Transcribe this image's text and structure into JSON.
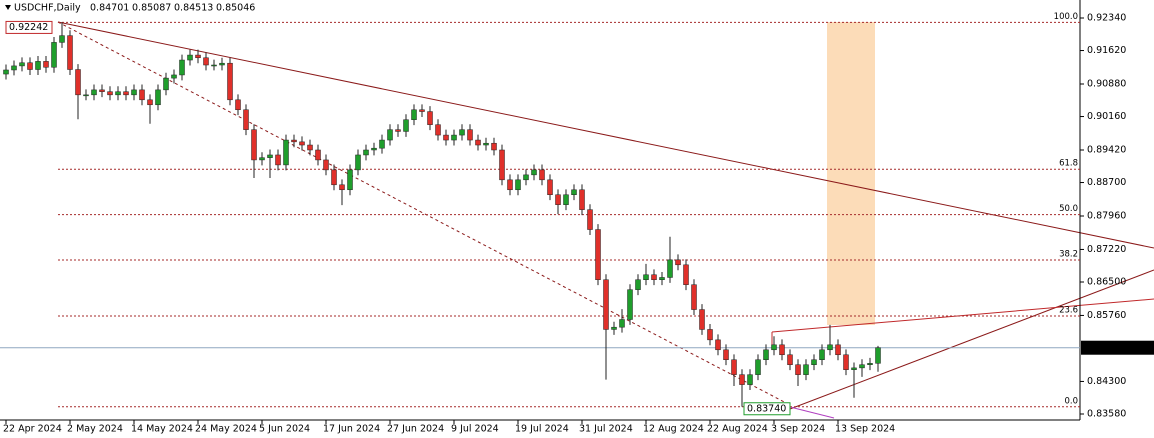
{
  "chart_data": {
    "type": "candlestick",
    "symbol": "USDCHF,Daily",
    "up_color": "#1f9e2c",
    "down_color": "#e0302a",
    "wick_color": "#222222",
    "ylim": [
      0.83447,
      0.92738
    ],
    "yticks": [
      {
        "value": 0.9234,
        "label": "0.92340"
      },
      {
        "value": 0.9162,
        "label": "0.91620"
      },
      {
        "value": 0.9088,
        "label": "0.90880"
      },
      {
        "value": 0.9016,
        "label": "0.90160"
      },
      {
        "value": 0.8942,
        "label": "0.89420"
      },
      {
        "value": 0.887,
        "label": "0.88700"
      },
      {
        "value": 0.8796,
        "label": "0.87960"
      },
      {
        "value": 0.8722,
        "label": "0.87220"
      },
      {
        "value": 0.865,
        "label": "0.86500"
      },
      {
        "value": 0.8576,
        "label": "0.85760"
      },
      {
        "value": 0.843,
        "label": "0.84300"
      },
      {
        "value": 0.8358,
        "label": "0.83580"
      }
    ],
    "extremes": [
      0.92242,
      {
        "value": 0.8374,
        "label": "0.83740"
      }
    ],
    "fib_levels": [
      {
        "value": 100,
        "label": "100.0"
      },
      61.8,
      {
        "value": 50,
        "label": "50.0"
      },
      38.2,
      23.6,
      {
        "value": 0,
        "label": "0.0"
      }
    ],
    "categories": [
      "22 Apr 2024",
      null,
      null,
      null,
      null,
      null,
      null,
      null,
      "2 May 2024",
      null,
      null,
      null,
      null,
      null,
      null,
      null,
      "14 May 2024",
      null,
      null,
      null,
      null,
      null,
      null,
      null,
      "24 May 2024",
      null,
      null,
      null,
      null,
      null,
      null,
      null,
      "5 Jun 2024",
      null,
      null,
      null,
      null,
      null,
      null,
      null,
      "17 Jun 2024",
      null,
      null,
      null,
      null,
      null,
      null,
      null,
      "27 Jun 2024",
      null,
      null,
      null,
      null,
      null,
      null,
      null,
      "9 Jul 2024",
      null,
      null,
      null,
      null,
      null,
      null,
      null,
      "19 Jul 2024",
      null,
      null,
      null,
      null,
      null,
      null,
      null,
      "31 Jul 2024",
      null,
      null,
      null,
      null,
      null,
      null,
      null,
      "12 Aug 2024",
      null,
      null,
      null,
      null,
      null,
      null,
      null,
      "22 Aug 2024",
      null,
      null,
      null,
      null,
      null,
      null,
      null,
      "3 Sep 2024",
      null,
      null,
      null,
      null,
      null,
      null,
      null,
      "13 Sep 2024",
      null,
      null,
      null,
      null,
      null
    ],
    "candles": [
      [
        0.911,
        0.9131,
        0.9098,
        0.9119
      ],
      [
        0.9119,
        0.914,
        0.9107,
        0.9128
      ],
      [
        0.9128,
        0.9147,
        0.9116,
        0.9135
      ],
      [
        0.9135,
        0.9147,
        0.9108,
        0.912
      ],
      [
        0.912,
        0.915,
        0.9108,
        0.9138
      ],
      [
        0.9138,
        0.915,
        0.9113,
        0.9125
      ],
      [
        0.9125,
        0.9192,
        0.9113,
        0.918
      ],
      [
        0.918,
        0.92242,
        0.9168,
        0.9195
      ],
      [
        0.9195,
        0.9207,
        0.9108,
        0.912
      ],
      [
        0.912,
        0.9132,
        0.901,
        0.9064
      ],
      [
        0.9064,
        0.9076,
        0.9052,
        0.9064
      ],
      [
        0.9064,
        0.9087,
        0.9052,
        0.9075
      ],
      [
        0.9075,
        0.9087,
        0.9059,
        0.9071
      ],
      [
        0.9071,
        0.9083,
        0.9052,
        0.9064
      ],
      [
        0.9064,
        0.9083,
        0.9052,
        0.9071
      ],
      [
        0.9071,
        0.9083,
        0.9052,
        0.9064
      ],
      [
        0.9064,
        0.9087,
        0.9052,
        0.9075
      ],
      [
        0.9075,
        0.9087,
        0.9041,
        0.9053
      ],
      [
        0.9053,
        0.9065,
        0.9,
        0.9042
      ],
      [
        0.9042,
        0.9087,
        0.903,
        0.9075
      ],
      [
        0.9075,
        0.9113,
        0.9063,
        0.9101
      ],
      [
        0.9101,
        0.912,
        0.9089,
        0.9108
      ],
      [
        0.9108,
        0.9153,
        0.9096,
        0.9141
      ],
      [
        0.9141,
        0.9164,
        0.9129,
        0.9152
      ],
      [
        0.9152,
        0.9164,
        0.9134,
        0.9146
      ],
      [
        0.9146,
        0.9158,
        0.9118,
        0.913
      ],
      [
        0.913,
        0.9142,
        0.9118,
        0.913
      ],
      [
        0.913,
        0.9146,
        0.9118,
        0.9134
      ],
      [
        0.9134,
        0.9146,
        0.9041,
        0.9053
      ],
      [
        0.9053,
        0.9065,
        0.9019,
        0.9031
      ],
      [
        0.9031,
        0.9043,
        0.8975,
        0.8987
      ],
      [
        0.8987,
        0.8999,
        0.888,
        0.892
      ],
      [
        0.892,
        0.8937,
        0.8908,
        0.8925
      ],
      [
        0.8925,
        0.8943,
        0.888,
        0.8931
      ],
      [
        0.8931,
        0.8943,
        0.8897,
        0.8909
      ],
      [
        0.8909,
        0.8976,
        0.8897,
        0.8964
      ],
      [
        0.8964,
        0.8976,
        0.8948,
        0.896
      ],
      [
        0.896,
        0.8972,
        0.8941,
        0.8953
      ],
      [
        0.8953,
        0.8965,
        0.893,
        0.8942
      ],
      [
        0.8942,
        0.8954,
        0.8908,
        0.892
      ],
      [
        0.892,
        0.8932,
        0.8886,
        0.8898
      ],
      [
        0.8898,
        0.891,
        0.8853,
        0.8865
      ],
      [
        0.8865,
        0.8877,
        0.882,
        0.8854
      ],
      [
        0.8854,
        0.891,
        0.8842,
        0.8898
      ],
      [
        0.8898,
        0.8943,
        0.8886,
        0.8931
      ],
      [
        0.8931,
        0.8954,
        0.8919,
        0.8942
      ],
      [
        0.8942,
        0.8958,
        0.893,
        0.8946
      ],
      [
        0.8946,
        0.8976,
        0.8934,
        0.8964
      ],
      [
        0.8964,
        0.8999,
        0.8952,
        0.8987
      ],
      [
        0.8987,
        0.8999,
        0.8971,
        0.8983
      ],
      [
        0.8983,
        0.9021,
        0.8971,
        0.9009
      ],
      [
        0.9009,
        0.9043,
        0.8997,
        0.9031
      ],
      [
        0.9031,
        0.9043,
        0.9015,
        0.9027
      ],
      [
        0.9027,
        0.9039,
        0.8986,
        0.8998
      ],
      [
        0.8998,
        0.901,
        0.8963,
        0.8975
      ],
      [
        0.8975,
        0.8987,
        0.8952,
        0.8964
      ],
      [
        0.8964,
        0.8987,
        0.8952,
        0.8975
      ],
      [
        0.8975,
        0.8999,
        0.8963,
        0.8987
      ],
      [
        0.8987,
        0.8999,
        0.8952,
        0.8964
      ],
      [
        0.8964,
        0.8976,
        0.8941,
        0.8953
      ],
      [
        0.8953,
        0.8969,
        0.8941,
        0.8957
      ],
      [
        0.8957,
        0.8969,
        0.893,
        0.8942
      ],
      [
        0.8942,
        0.8954,
        0.8864,
        0.8876
      ],
      [
        0.8876,
        0.8888,
        0.8842,
        0.8854
      ],
      [
        0.8854,
        0.8888,
        0.8842,
        0.8876
      ],
      [
        0.8876,
        0.8899,
        0.8864,
        0.8887
      ],
      [
        0.8887,
        0.891,
        0.8875,
        0.8898
      ],
      [
        0.8898,
        0.891,
        0.8864,
        0.8876
      ],
      [
        0.8876,
        0.8888,
        0.8831,
        0.8843
      ],
      [
        0.8843,
        0.8855,
        0.88,
        0.8821
      ],
      [
        0.8821,
        0.8855,
        0.8809,
        0.8843
      ],
      [
        0.8843,
        0.8866,
        0.8831,
        0.8854
      ],
      [
        0.8854,
        0.8866,
        0.8798,
        0.881
      ],
      [
        0.881,
        0.8822,
        0.8754,
        0.8766
      ],
      [
        0.8766,
        0.8778,
        0.8643,
        0.8655
      ],
      [
        0.8655,
        0.8667,
        0.8434,
        0.8545
      ],
      [
        0.8545,
        0.8562,
        0.8533,
        0.855
      ],
      [
        0.855,
        0.859,
        0.8538,
        0.8567
      ],
      [
        0.8567,
        0.8645,
        0.8555,
        0.8633
      ],
      [
        0.8633,
        0.8667,
        0.8621,
        0.8655
      ],
      [
        0.8655,
        0.869,
        0.8643,
        0.8666
      ],
      [
        0.8666,
        0.8678,
        0.8643,
        0.8655
      ],
      [
        0.8655,
        0.8672,
        0.8643,
        0.866
      ],
      [
        0.866,
        0.875,
        0.8648,
        0.8699
      ],
      [
        0.8699,
        0.8711,
        0.8676,
        0.8688
      ],
      [
        0.8688,
        0.87,
        0.8632,
        0.8644
      ],
      [
        0.8644,
        0.8656,
        0.8577,
        0.8589
      ],
      [
        0.8589,
        0.8601,
        0.8533,
        0.8545
      ],
      [
        0.8545,
        0.8557,
        0.851,
        0.8522
      ],
      [
        0.8522,
        0.8534,
        0.8488,
        0.85
      ],
      [
        0.85,
        0.8512,
        0.8466,
        0.8478
      ],
      [
        0.8478,
        0.849,
        0.842,
        0.8445
      ],
      [
        0.8445,
        0.8457,
        0.8374,
        0.8423
      ],
      [
        0.8423,
        0.8457,
        0.8411,
        0.8445
      ],
      [
        0.8445,
        0.849,
        0.8433,
        0.8478
      ],
      [
        0.8478,
        0.8512,
        0.8466,
        0.85
      ],
      [
        0.85,
        0.853,
        0.8488,
        0.8511
      ],
      [
        0.8511,
        0.8523,
        0.8477,
        0.8489
      ],
      [
        0.8489,
        0.8501,
        0.8455,
        0.8467
      ],
      [
        0.8467,
        0.8479,
        0.842,
        0.8445
      ],
      [
        0.8445,
        0.8479,
        0.8433,
        0.8467
      ],
      [
        0.8467,
        0.849,
        0.8455,
        0.8478
      ],
      [
        0.8478,
        0.8512,
        0.8466,
        0.85
      ],
      [
        0.85,
        0.8555,
        0.8488,
        0.8511
      ],
      [
        0.8511,
        0.8523,
        0.8477,
        0.8489
      ],
      [
        0.8489,
        0.8501,
        0.8444,
        0.8456
      ],
      [
        0.8456,
        0.8472,
        0.8394,
        0.846
      ],
      [
        0.846,
        0.8479,
        0.844,
        0.8467
      ],
      [
        0.8467,
        0.8482,
        0.8455,
        0.847
      ],
      [
        0.84701,
        0.85087,
        0.84513,
        0.85046
      ]
    ]
  }
}
